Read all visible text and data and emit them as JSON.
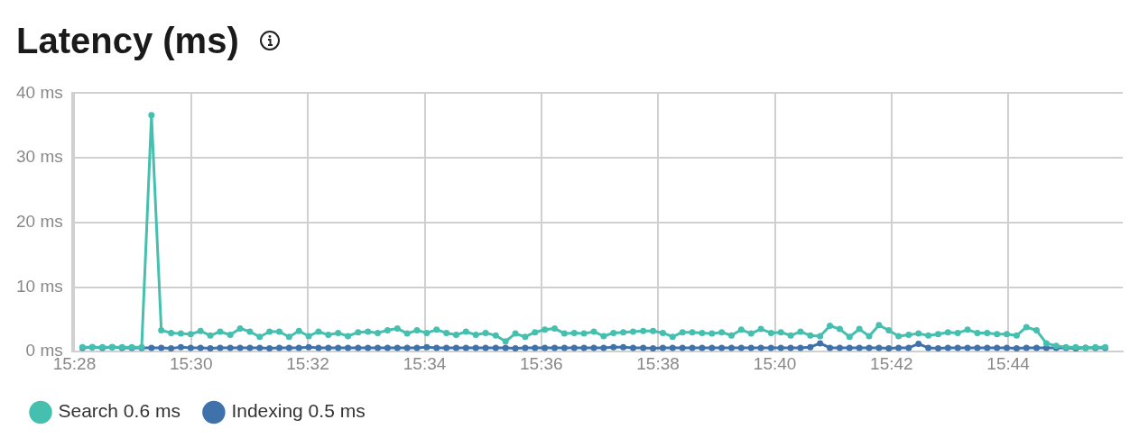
{
  "chart_data": {
    "type": "line",
    "title": "Latency (ms)",
    "x": [
      15.469,
      15.4718,
      15.4747,
      15.4775,
      15.4803,
      15.4831,
      15.4859,
      15.4887,
      15.4915,
      15.4943,
      15.4971,
      15.4999,
      15.5027,
      15.5055,
      15.5083,
      15.5112,
      15.514,
      15.5168,
      15.5196,
      15.5224,
      15.5252,
      15.528,
      15.5308,
      15.5336,
      15.5364,
      15.5392,
      15.542,
      15.5448,
      15.5477,
      15.5505,
      15.5533,
      15.5561,
      15.5589,
      15.5617,
      15.5645,
      15.5673,
      15.5701,
      15.5729,
      15.5757,
      15.5785,
      15.5813,
      15.5841,
      15.587,
      15.5898,
      15.5926,
      15.5954,
      15.5982,
      15.601,
      15.6038,
      15.6066,
      15.6094,
      15.6122,
      15.615,
      15.6178,
      15.6206,
      15.6234,
      15.6262,
      15.6291,
      15.6319,
      15.6347,
      15.6375,
      15.6403,
      15.6431,
      15.6459,
      15.6487,
      15.6515,
      15.6543,
      15.6571,
      15.6599,
      15.6627,
      15.6656,
      15.6684,
      15.6712,
      15.674,
      15.6768,
      15.6796,
      15.6824,
      15.6852,
      15.688,
      15.6908,
      15.6936,
      15.6964,
      15.6992,
      15.702,
      15.7049,
      15.7077,
      15.7105,
      15.7133,
      15.7161,
      15.7189,
      15.7217,
      15.7245,
      15.7273,
      15.7301,
      15.7329,
      15.7357,
      15.7385,
      15.7414,
      15.7442,
      15.747,
      15.7498,
      15.7526,
      15.7554,
      15.7582,
      15.761
    ],
    "series": [
      {
        "name": "Search 0.6 ms",
        "color": "#45bfae",
        "values": [
          0.7,
          0.7,
          0.7,
          0.7,
          0.7,
          0.7,
          0.7,
          36.6,
          3.3,
          2.9,
          2.8,
          2.7,
          3.2,
          2.5,
          3.1,
          2.6,
          3.6,
          3.1,
          2.3,
          3.1,
          3.1,
          2.3,
          3.2,
          2.4,
          3.1,
          2.6,
          2.9,
          2.4,
          3.0,
          3.1,
          2.9,
          3.3,
          3.6,
          2.8,
          3.3,
          2.9,
          3.4,
          2.9,
          2.6,
          3.1,
          2.6,
          2.9,
          2.5,
          1.6,
          2.8,
          2.3,
          3.0,
          3.4,
          3.6,
          2.8,
          2.9,
          2.8,
          3.1,
          2.4,
          2.9,
          3.0,
          3.1,
          3.2,
          3.2,
          2.9,
          2.3,
          3.0,
          3.0,
          2.9,
          2.8,
          3.0,
          2.5,
          3.4,
          2.8,
          3.5,
          2.9,
          3.0,
          2.5,
          3.1,
          2.5,
          2.4,
          4.0,
          3.5,
          2.3,
          3.5,
          2.4,
          4.1,
          3.3,
          2.4,
          2.6,
          2.8,
          2.5,
          2.7,
          3.0,
          2.9,
          3.4,
          2.9,
          2.9,
          2.7,
          2.7,
          2.5,
          3.8,
          3.3,
          1.3,
          0.9,
          0.7,
          0.7,
          0.6,
          0.7,
          0.7
        ]
      },
      {
        "name": "Indexing 0.5 ms",
        "color": "#3f72ab",
        "values": [
          0.6,
          0.7,
          0.6,
          0.7,
          0.6,
          0.6,
          0.6,
          0.6,
          0.6,
          0.5,
          0.7,
          0.6,
          0.6,
          0.5,
          0.6,
          0.6,
          0.6,
          0.6,
          0.6,
          0.5,
          0.6,
          0.6,
          0.6,
          0.7,
          0.6,
          0.6,
          0.6,
          0.6,
          0.6,
          0.6,
          0.6,
          0.6,
          0.6,
          0.6,
          0.6,
          0.7,
          0.6,
          0.6,
          0.6,
          0.6,
          0.6,
          0.6,
          0.6,
          0.6,
          0.5,
          0.6,
          0.6,
          0.6,
          0.6,
          0.6,
          0.6,
          0.6,
          0.6,
          0.6,
          0.7,
          0.7,
          0.6,
          0.6,
          0.5,
          0.6,
          0.6,
          0.6,
          0.6,
          0.6,
          0.6,
          0.6,
          0.6,
          0.6,
          0.6,
          0.6,
          0.6,
          0.6,
          0.6,
          0.6,
          0.7,
          1.3,
          0.6,
          0.6,
          0.6,
          0.6,
          0.6,
          0.6,
          0.5,
          0.6,
          0.6,
          1.2,
          0.6,
          0.5,
          0.6,
          0.6,
          0.6,
          0.6,
          0.6,
          0.6,
          0.6,
          0.5,
          0.6,
          0.6,
          0.6,
          0.6,
          0.6,
          0.5,
          0.6,
          0.6,
          0.6
        ]
      }
    ],
    "xlim": [
      15.466,
      15.766
    ],
    "xticks": [
      {
        "value": 15.4667,
        "label": "15:28"
      },
      {
        "value": 15.5,
        "label": "15:30"
      },
      {
        "value": 15.5333,
        "label": "15:32"
      },
      {
        "value": 15.5667,
        "label": "15:34"
      },
      {
        "value": 15.6,
        "label": "15:36"
      },
      {
        "value": 15.6333,
        "label": "15:38"
      },
      {
        "value": 15.6667,
        "label": "15:40"
      },
      {
        "value": 15.7,
        "label": "15:42"
      },
      {
        "value": 15.7333,
        "label": "15:44"
      }
    ],
    "ylim": [
      0,
      40
    ],
    "yticks": [
      {
        "value": 0,
        "label": "0 ms"
      },
      {
        "value": 10,
        "label": "10 ms"
      },
      {
        "value": 20,
        "label": "20 ms"
      },
      {
        "value": 30,
        "label": "30 ms"
      },
      {
        "value": 40,
        "label": "40 ms"
      }
    ],
    "grid": true,
    "legend": "bottom left",
    "marker": "circle",
    "line_style": "solid"
  }
}
